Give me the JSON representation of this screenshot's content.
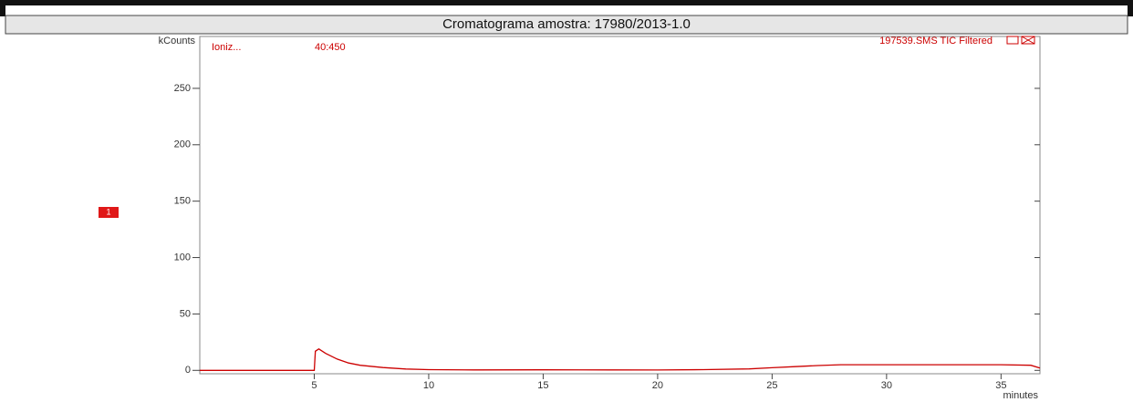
{
  "chart_data": {
    "type": "line",
    "title": "Cromatograma amostra: 17980/2013-1.0",
    "y_label": "kCounts",
    "x_label": "minutes",
    "annotations": {
      "left": "Ioniz...",
      "mid": "40:450",
      "right": "197539.SMS TIC Filtered",
      "marker": "1"
    },
    "xlim": [
      0,
      36.7
    ],
    "ylim": [
      -3,
      296
    ],
    "xticks": [
      5,
      10,
      15,
      20,
      25,
      30,
      35
    ],
    "yticks": [
      0,
      50,
      100,
      150,
      200,
      250
    ],
    "x": [
      0,
      2,
      4,
      5.0,
      5.05,
      5.2,
      5.5,
      6,
      6.5,
      7,
      8,
      9,
      10,
      12,
      15,
      18,
      20,
      22,
      24,
      25,
      26,
      27,
      28,
      30,
      33,
      35,
      36.3,
      36.7
    ],
    "series": [
      {
        "name": "TIC",
        "color": "#cc0000",
        "values": [
          0,
          0,
          0,
          0,
          17,
          19,
          15,
          10,
          6.5,
          4.5,
          2.5,
          1.2,
          0.6,
          0.4,
          0.5,
          0.4,
          0.3,
          0.6,
          1.3,
          2.3,
          3.3,
          4.3,
          5,
          5,
          5,
          5,
          4.5,
          2
        ]
      }
    ]
  }
}
